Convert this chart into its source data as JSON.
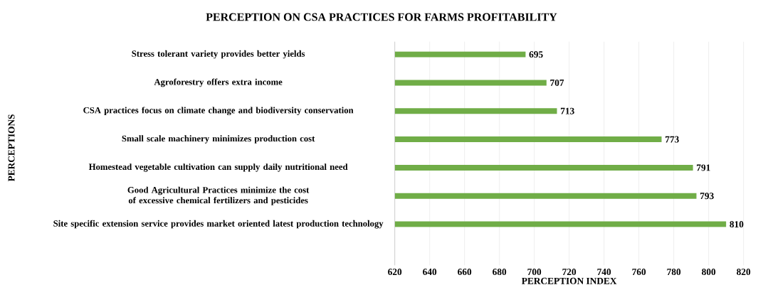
{
  "chart_data": {
    "type": "bar",
    "orientation": "horizontal",
    "title": "PERCEPTION ON CSA PRACTICES FOR FARMS PROFITABILITY",
    "xlabel": "PERCEPTION INDEX",
    "ylabel": "PERCEPTIONS",
    "categories": [
      "Stress tolerant variety provides better yields",
      "Agroforestry offers extra income",
      "CSA practices focus on climate change and biodiversity conservation",
      "Small scale machinery minimizes production cost",
      "Homestead vegetable cultivation can supply daily nutritional need",
      "Good Agricultural Practices minimize the cost of excessive chemical fertilizers and pesticides",
      "Site specific extension service provides market oriented latest production technology"
    ],
    "values": [
      695,
      707,
      713,
      773,
      791,
      793,
      810
    ],
    "color": "#70ad47",
    "data_labels": true,
    "grid": "x",
    "xlim": [
      620,
      820
    ],
    "xticks": [
      620,
      640,
      660,
      680,
      700,
      720,
      740,
      760,
      780,
      800,
      820
    ]
  }
}
